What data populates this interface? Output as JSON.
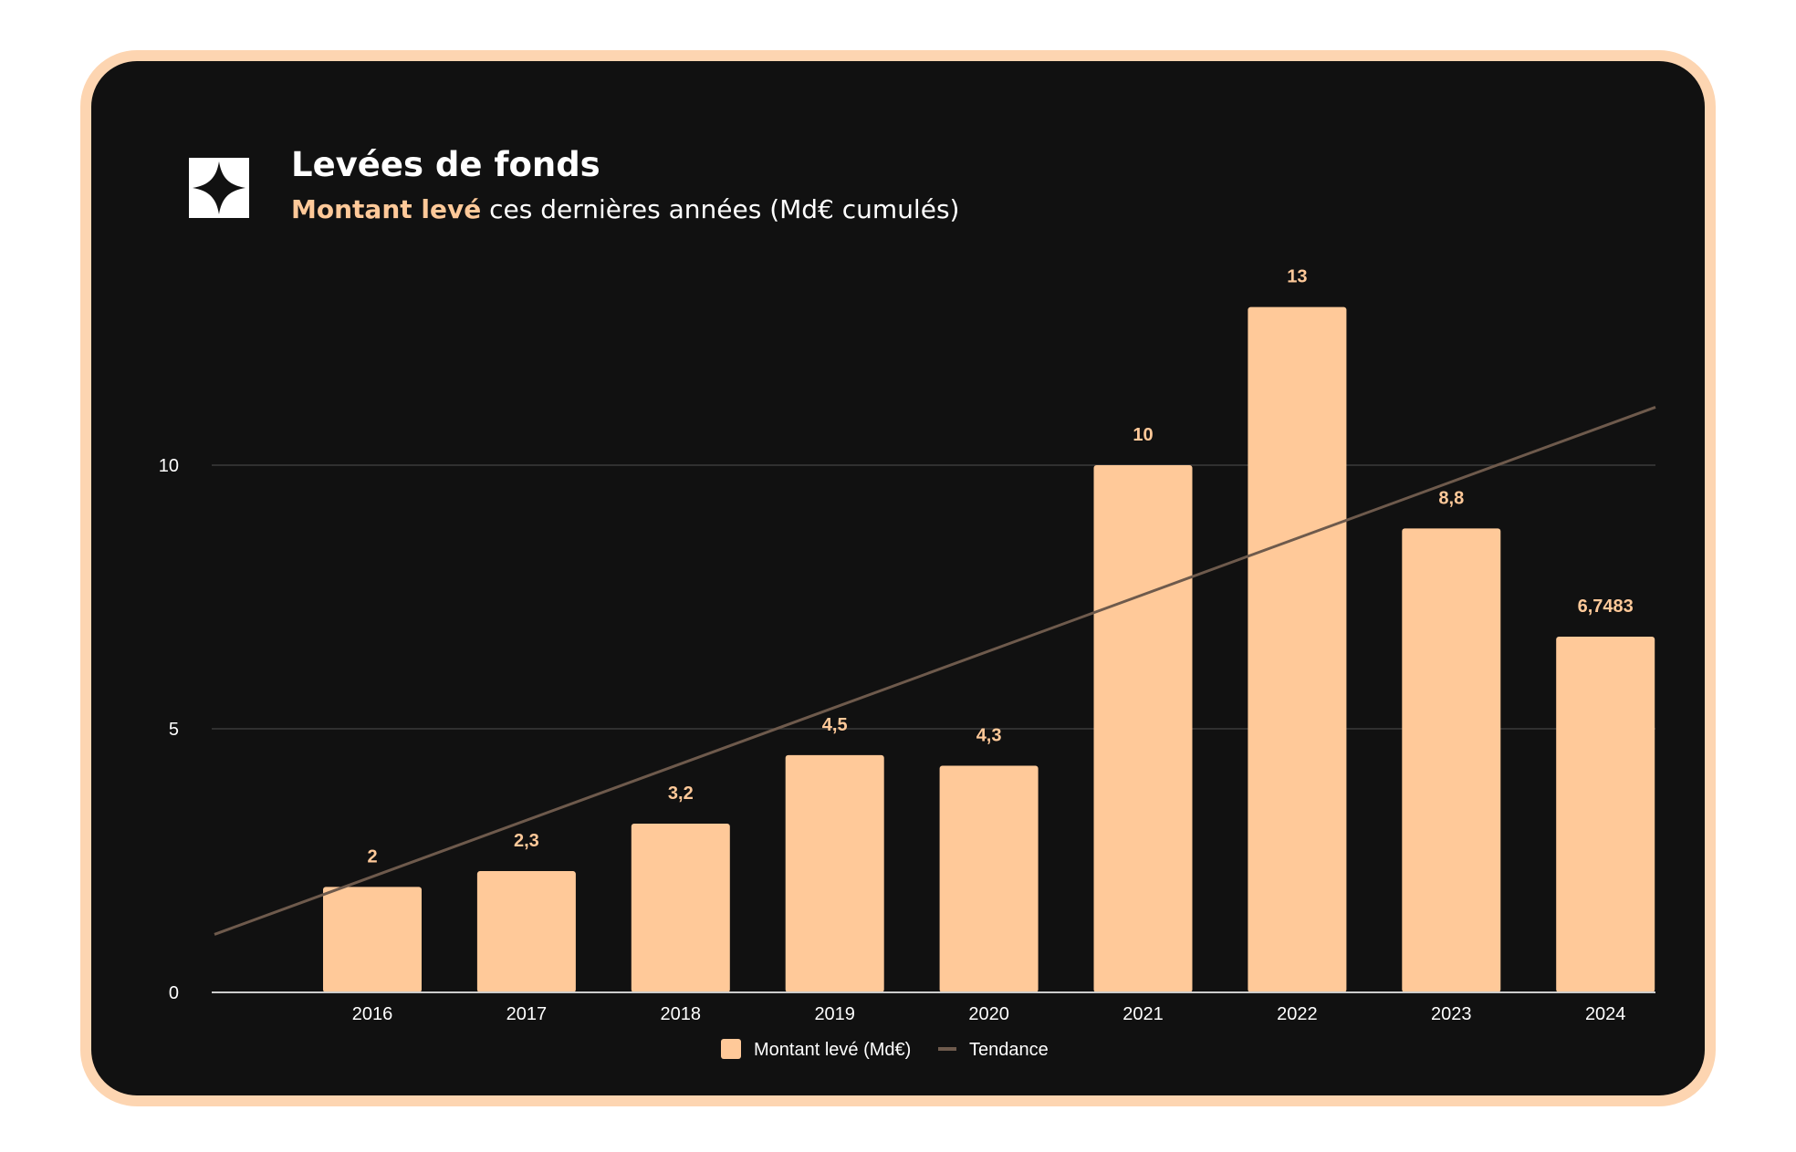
{
  "header": {
    "title": "Levées de fonds",
    "subtitle_accent": "Montant levé",
    "subtitle_rest": " ces dernières années (Md€ cumulés)",
    "logo_icon": "four-point-star-icon"
  },
  "colors": {
    "background": "#111111",
    "frame_border": "#fdd5b1",
    "bar": "#ffc999",
    "trend": "#6e5a4c",
    "data_label": "#ffc999",
    "gridline": "#3a3a3a"
  },
  "chart_data": {
    "type": "bar",
    "categories": [
      "2016",
      "2017",
      "2018",
      "2019",
      "2020",
      "2021",
      "2022",
      "2023",
      "2024"
    ],
    "series": [
      {
        "name": "Montant levé (Md€)",
        "type": "bar",
        "values": [
          2,
          2.3,
          3.2,
          4.5,
          4.3,
          10,
          13,
          8.8,
          6.7483
        ],
        "labels": [
          "2",
          "2,3",
          "3,2",
          "4,5",
          "4,3",
          "10",
          "13",
          "8,8",
          "6,7483"
        ]
      },
      {
        "name": "Tendance",
        "type": "trendline",
        "start_value": 1.1,
        "end_value": 11.1
      }
    ],
    "ylim": [
      0,
      13
    ],
    "yticks": [
      "0",
      "5",
      "10"
    ],
    "ytick_values": [
      0,
      5,
      10
    ],
    "grid": true,
    "legend_position": "bottom"
  }
}
